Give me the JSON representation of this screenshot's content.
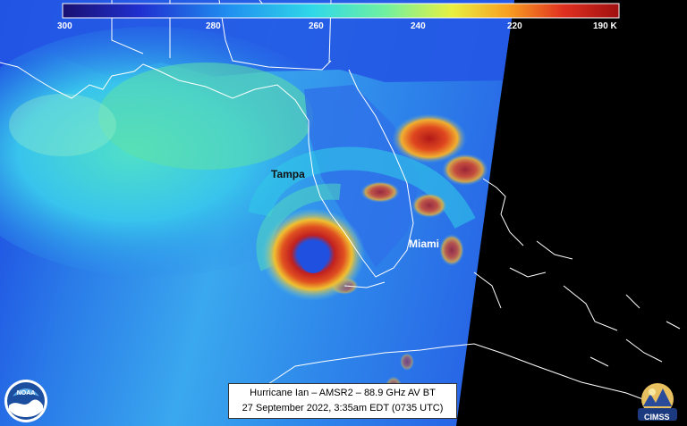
{
  "colorbar": {
    "labels": [
      "300",
      "280",
      "260",
      "240",
      "220",
      "190 K"
    ]
  },
  "cities": {
    "tampa": "Tampa",
    "miami": "Miami"
  },
  "caption": {
    "line1": "Hurricane Ian – AMSR2 – 88.9 GHz AV BT",
    "line2": "27 September 2022, 3:35am EDT (0735 UTC)"
  },
  "logos": {
    "noaa": "NOAA",
    "cimss": "CIMSS"
  },
  "colors": {
    "swath_blue": "#1a4de0",
    "gulf_cyan": "#38c8ee",
    "warm_green": "#5be0a0",
    "eyewall_red": "#c01818",
    "no_data": "#000000"
  }
}
